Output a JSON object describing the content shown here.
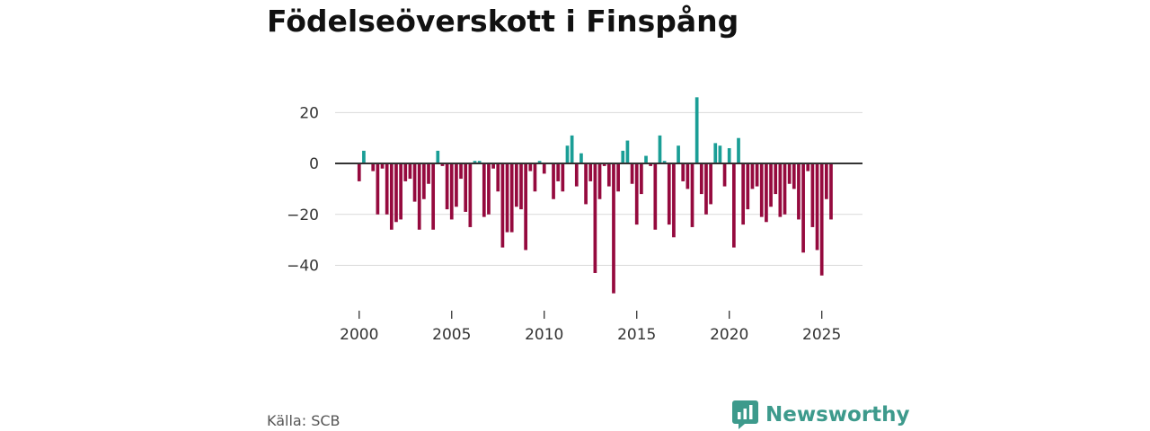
{
  "title": "Födelseöverskott i Finspång",
  "source": "Källa: SCB",
  "brand": {
    "name": "Newsworthy",
    "icon": "newsworthy-logo-icon"
  },
  "colors": {
    "positive": "#1a9e96",
    "negative": "#950a3e",
    "grid": "#d9d9d9",
    "zero_line": "#333333"
  },
  "chart_data": {
    "type": "bar",
    "title": "Födelseöverskott i Finspång",
    "xlabel": "",
    "ylabel": "",
    "x_start": 2000,
    "x_step_years": 0.25,
    "xlim": [
      1998.7,
      2027.2
    ],
    "ylim": [
      -55,
      30
    ],
    "x_ticks": [
      2000,
      2005,
      2010,
      2015,
      2020,
      2025
    ],
    "y_ticks": [
      20,
      0,
      -20,
      -40
    ],
    "y_tick_labels": [
      "20",
      "0",
      "−20",
      "−40"
    ],
    "values": [
      -7,
      5,
      0,
      -3,
      -20,
      -2,
      -20,
      -26,
      -23,
      -22,
      -7,
      -6,
      -15,
      -26,
      -14,
      -8,
      -26,
      5,
      -1,
      -18,
      -22,
      -17,
      -6,
      -19,
      -25,
      1,
      1,
      -21,
      -20,
      -2,
      -11,
      -33,
      -27,
      -27,
      -17,
      -18,
      -34,
      -3,
      -11,
      1,
      -4,
      0,
      -14,
      -7,
      -11,
      7,
      11,
      -9,
      4,
      -16,
      -7,
      -43,
      -14,
      -1,
      -9,
      -51,
      -11,
      5,
      9,
      -8,
      -24,
      -12,
      3,
      -1,
      -26,
      11,
      1,
      -24,
      -29,
      7,
      -7,
      -10,
      -25,
      26,
      -12,
      -20,
      -16,
      8,
      7,
      -9,
      6,
      -33,
      10,
      -24,
      -18,
      -10,
      -9,
      -21,
      -23,
      -17,
      -12,
      -21,
      -20,
      -8,
      -10,
      -22,
      -35,
      -3,
      -25,
      -34,
      -44,
      -14,
      -22
    ],
    "grid": true,
    "legend": "none"
  }
}
